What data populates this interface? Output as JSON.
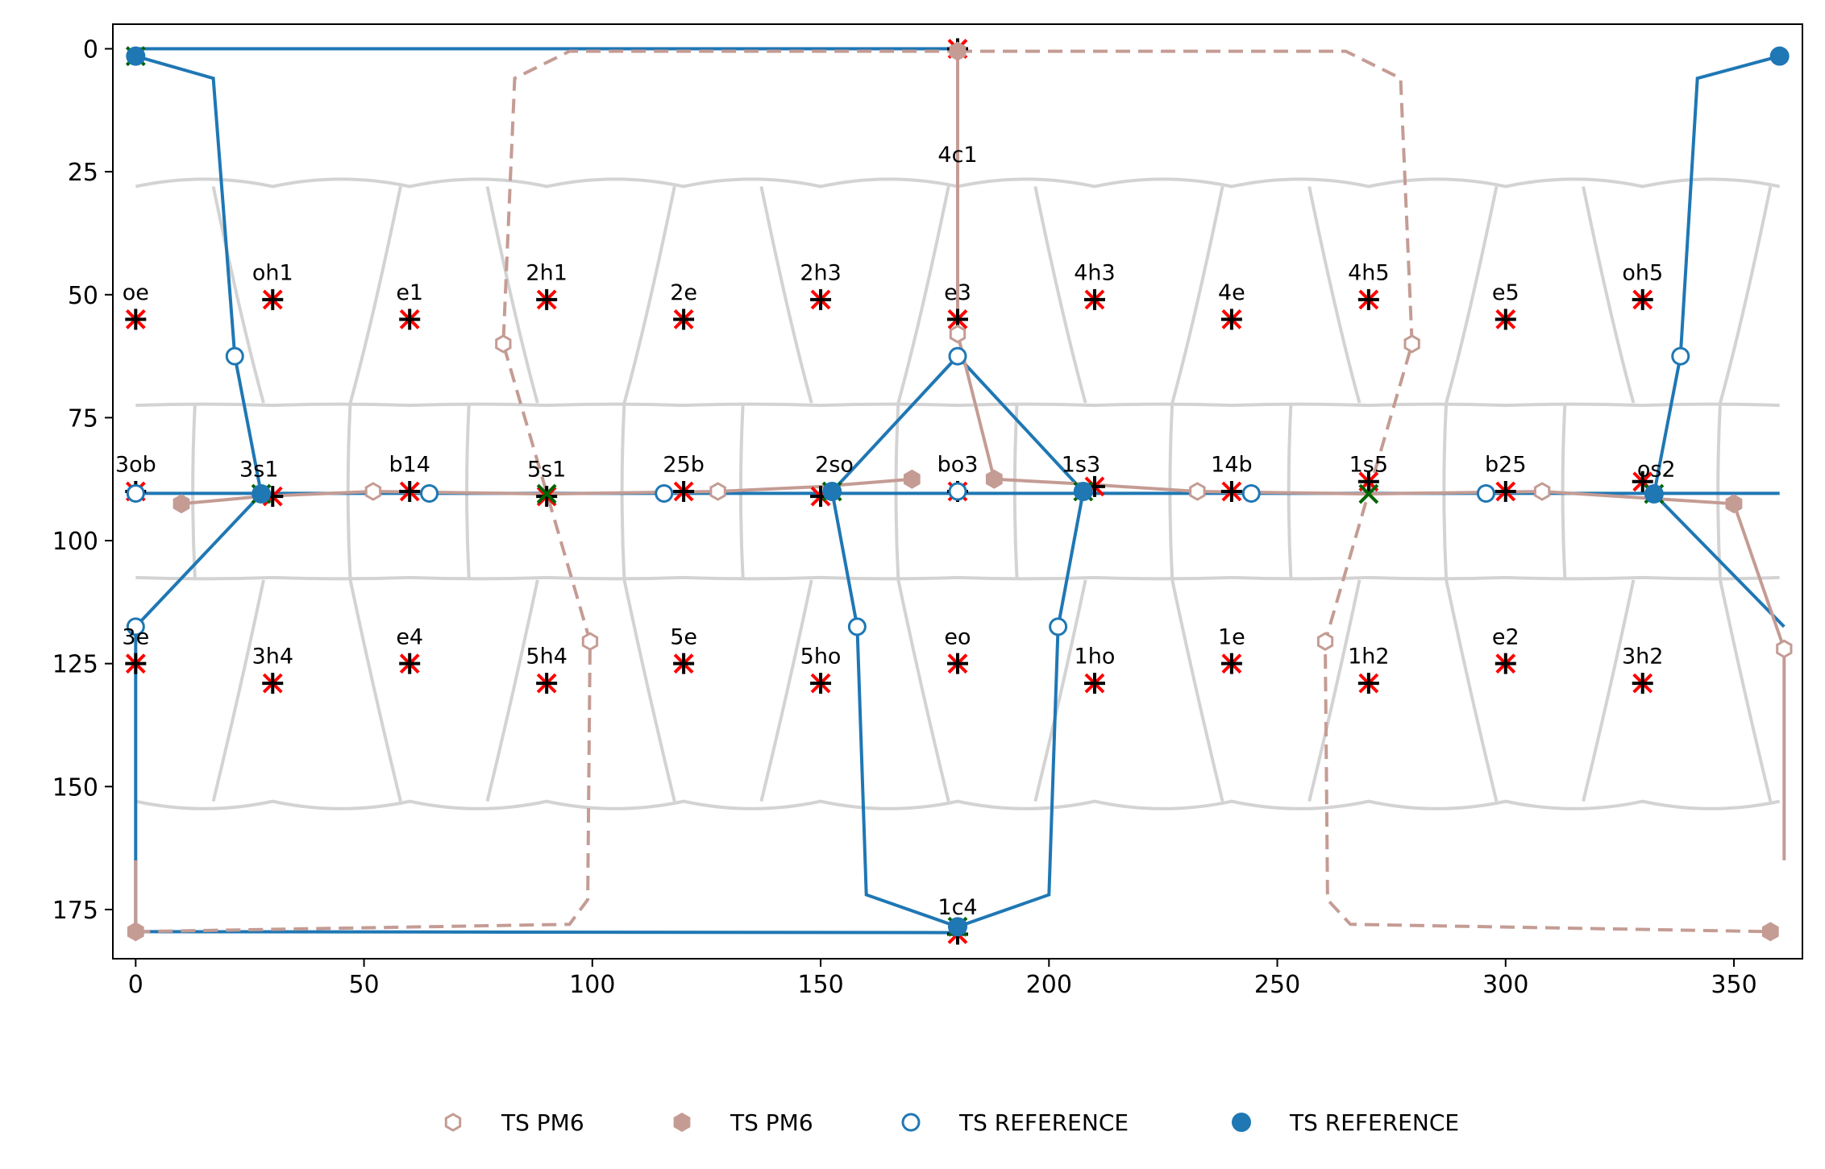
{
  "chart_data": {
    "type": "scatter",
    "title": "",
    "xlabel": "",
    "ylabel": "",
    "xlim": [
      -5,
      365
    ],
    "ylim": [
      185,
      -5
    ],
    "y_inverted": true,
    "grid": false,
    "xticks": [
      0,
      50,
      100,
      150,
      200,
      250,
      300,
      350
    ],
    "yticks": [
      0,
      25,
      50,
      75,
      100,
      125,
      150,
      175
    ],
    "legend": {
      "placement": "bottom-center",
      "entries": [
        {
          "label": "TS PM6",
          "marker": "hexagon-open",
          "color": "#c49c94"
        },
        {
          "label": "TS PM6",
          "marker": "hexagon-filled",
          "color": "#c49c94"
        },
        {
          "label": "TS REFERENCE",
          "marker": "circle-open",
          "color": "#1f77b4"
        },
        {
          "label": "TS REFERENCE",
          "marker": "circle-filled",
          "color": "#1f77b4"
        }
      ]
    },
    "colors": {
      "reference": "#1f77b4",
      "pm6": "#c49c94",
      "grid_lines": "#d3d3d3",
      "red_marker": "#ff0000",
      "green_marker": "#006400",
      "black_marker": "#000000"
    },
    "labeled_points": [
      {
        "name": "4c1",
        "x": 180,
        "y": 0,
        "lx": 180,
        "ly": 23
      },
      {
        "name": "oe",
        "x": 0,
        "y": 55,
        "lx": 0,
        "ly": 51
      },
      {
        "name": "oh1",
        "x": 30,
        "y": 51,
        "lx": 30,
        "ly": 47
      },
      {
        "name": "e1",
        "x": 60,
        "y": 55,
        "lx": 60,
        "ly": 51
      },
      {
        "name": "2h1",
        "x": 90,
        "y": 51,
        "lx": 90,
        "ly": 47
      },
      {
        "name": "2e",
        "x": 120,
        "y": 55,
        "lx": 120,
        "ly": 51
      },
      {
        "name": "2h3",
        "x": 150,
        "y": 51,
        "lx": 150,
        "ly": 47
      },
      {
        "name": "e3",
        "x": 180,
        "y": 55,
        "lx": 180,
        "ly": 51
      },
      {
        "name": "4h3",
        "x": 210,
        "y": 51,
        "lx": 210,
        "ly": 47
      },
      {
        "name": "4e",
        "x": 240,
        "y": 55,
        "lx": 240,
        "ly": 51
      },
      {
        "name": "4h5",
        "x": 270,
        "y": 51,
        "lx": 270,
        "ly": 47
      },
      {
        "name": "e5",
        "x": 300,
        "y": 55,
        "lx": 300,
        "ly": 51
      },
      {
        "name": "oh5",
        "x": 330,
        "y": 51,
        "lx": 330,
        "ly": 47
      },
      {
        "name": "3ob",
        "x": 0,
        "y": 90,
        "lx": 0,
        "ly": 86
      },
      {
        "name": "3s1",
        "x": 30,
        "y": 91,
        "lx": 27,
        "ly": 87
      },
      {
        "name": "b14",
        "x": 60,
        "y": 90,
        "lx": 60,
        "ly": 86
      },
      {
        "name": "5s1",
        "x": 90,
        "y": 91,
        "lx": 90,
        "ly": 87
      },
      {
        "name": "25b",
        "x": 120,
        "y": 90,
        "lx": 120,
        "ly": 86
      },
      {
        "name": "2so",
        "x": 150,
        "y": 91,
        "lx": 153,
        "ly": 86
      },
      {
        "name": "bo3",
        "x": 180,
        "y": 90,
        "lx": 180,
        "ly": 86
      },
      {
        "name": "1s3",
        "x": 210,
        "y": 89,
        "lx": 207,
        "ly": 86
      },
      {
        "name": "14b",
        "x": 240,
        "y": 90,
        "lx": 240,
        "ly": 86
      },
      {
        "name": "1s5",
        "x": 270,
        "y": 88,
        "lx": 270,
        "ly": 86
      },
      {
        "name": "b25",
        "x": 300,
        "y": 90,
        "lx": 300,
        "ly": 86
      },
      {
        "name": "os2",
        "x": 330,
        "y": 88,
        "lx": 333,
        "ly": 87
      },
      {
        "name": "3e",
        "x": 0,
        "y": 125,
        "lx": 0,
        "ly": 121
      },
      {
        "name": "3h4",
        "x": 30,
        "y": 129,
        "lx": 30,
        "ly": 125
      },
      {
        "name": "e4",
        "x": 60,
        "y": 125,
        "lx": 60,
        "ly": 121
      },
      {
        "name": "5h4",
        "x": 90,
        "y": 129,
        "lx": 90,
        "ly": 125
      },
      {
        "name": "5e",
        "x": 120,
        "y": 125,
        "lx": 120,
        "ly": 121
      },
      {
        "name": "5ho",
        "x": 150,
        "y": 129,
        "lx": 150,
        "ly": 125
      },
      {
        "name": "eo",
        "x": 180,
        "y": 125,
        "lx": 180,
        "ly": 121
      },
      {
        "name": "1ho",
        "x": 210,
        "y": 129,
        "lx": 210,
        "ly": 125
      },
      {
        "name": "1e",
        "x": 240,
        "y": 125,
        "lx": 240,
        "ly": 121
      },
      {
        "name": "1h2",
        "x": 270,
        "y": 129,
        "lx": 270,
        "ly": 125
      },
      {
        "name": "e2",
        "x": 300,
        "y": 125,
        "lx": 300,
        "ly": 121
      },
      {
        "name": "3h2",
        "x": 330,
        "y": 129,
        "lx": 330,
        "ly": 125
      },
      {
        "name": "1c4",
        "x": 180,
        "y": 180,
        "lx": 180,
        "ly": 176
      }
    ],
    "series": [
      {
        "name": "TS REFERENCE",
        "style": "solid",
        "color": "#1f77b4",
        "open_markers": [
          [
            21.7,
            62.5
          ],
          [
            0,
            117.5
          ],
          [
            64.3,
            90.4
          ],
          [
            115.7,
            90.4
          ],
          [
            158,
            117.5
          ],
          [
            180,
            62.5
          ],
          [
            202,
            117.5
          ],
          [
            244.3,
            90.4
          ],
          [
            295.7,
            90.4
          ],
          [
            338.3,
            62.5
          ],
          [
            0,
            90.4
          ],
          [
            180,
            90
          ]
        ],
        "filled_markers": [
          [
            0,
            1.5
          ],
          [
            27.5,
            90.5
          ],
          [
            152.5,
            90
          ],
          [
            207.5,
            90
          ],
          [
            332.5,
            90.5
          ],
          [
            180,
            178.5
          ],
          [
            360,
            1.5
          ]
        ]
      },
      {
        "name": "TS PM6",
        "style": "dashed",
        "color": "#c49c94",
        "open_markers": [
          [
            80.5,
            60
          ],
          [
            99.5,
            120.5
          ],
          [
            52,
            90
          ],
          [
            127.5,
            90
          ],
          [
            180,
            58
          ],
          [
            232.5,
            90
          ],
          [
            279.5,
            60
          ],
          [
            260.5,
            120.5
          ],
          [
            308,
            90
          ],
          [
            361,
            122
          ]
        ],
        "filled_markers": [
          [
            10,
            92.5
          ],
          [
            170,
            87.5
          ],
          [
            188,
            87.5
          ],
          [
            180,
            0.5
          ],
          [
            0,
            179.5
          ],
          [
            350,
            92.5
          ],
          [
            358,
            179.5
          ]
        ]
      }
    ]
  }
}
